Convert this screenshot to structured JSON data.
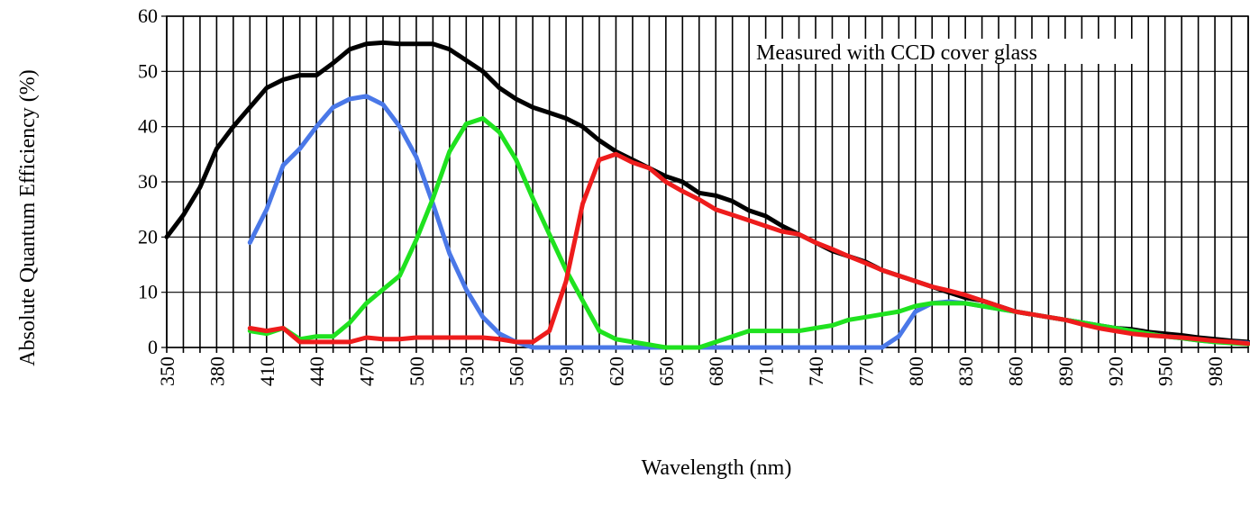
{
  "chart_data": {
    "type": "line",
    "xlabel": "Wavelength (nm)",
    "ylabel": "Absolute Quantum Efficiency (%)",
    "annotation": "Measured with CCD cover glass",
    "xlim": [
      350,
      1000
    ],
    "ylim": [
      0,
      60
    ],
    "x_step": 10,
    "x_tick_labels": [
      "350",
      "380",
      "410",
      "440",
      "470",
      "500",
      "530",
      "560",
      "590",
      "620",
      "650",
      "680",
      "710",
      "740",
      "770",
      "800",
      "830",
      "860",
      "890",
      "920",
      "950",
      "980"
    ],
    "y_tick_labels": [
      "0",
      "10",
      "20",
      "30",
      "40",
      "50",
      "60"
    ],
    "grid": true,
    "series": [
      {
        "color": "#000000",
        "x": [
          350,
          360,
          370,
          380,
          390,
          400,
          410,
          420,
          430,
          440,
          450,
          460,
          470,
          480,
          490,
          500,
          510,
          520,
          530,
          540,
          550,
          560,
          570,
          580,
          590,
          600,
          610,
          620,
          630,
          640,
          650,
          660,
          670,
          680,
          690,
          700,
          710,
          720,
          730,
          740,
          750,
          760,
          770,
          780,
          790,
          800,
          810,
          820,
          830,
          840,
          850,
          860,
          870,
          880,
          890,
          900,
          910,
          920,
          930,
          940,
          950,
          960,
          970,
          980,
          990,
          1000
        ],
        "y": [
          20,
          24,
          29,
          36,
          40,
          43.5,
          47,
          48.5,
          49.3,
          49.3,
          51.5,
          54,
          55,
          55.2,
          55,
          55,
          55,
          54,
          52,
          50,
          47,
          45,
          43.5,
          42.5,
          41.5,
          40,
          37.5,
          35.5,
          34,
          32.5,
          31,
          30,
          28,
          27.5,
          26.5,
          24.8,
          23.8,
          22,
          20.5,
          19,
          17.5,
          16.5,
          15.5,
          14,
          13,
          12,
          11,
          10,
          9,
          8.5,
          7.5,
          6.5,
          6,
          5.5,
          5,
          4.5,
          4,
          3.5,
          3.3,
          2.8,
          2.5,
          2.2,
          1.8,
          1.5,
          1.2,
          1
        ]
      },
      {
        "color": "#4a78e8",
        "x": [
          400,
          410,
          420,
          430,
          440,
          450,
          460,
          470,
          480,
          490,
          500,
          510,
          520,
          530,
          540,
          550,
          560,
          570,
          580,
          590,
          600,
          610,
          620,
          630,
          640,
          650,
          660,
          670,
          680,
          690,
          700,
          710,
          720,
          730,
          740,
          750,
          760,
          770,
          780,
          790,
          800,
          810,
          820,
          830,
          840,
          850,
          860,
          870,
          880,
          890,
          900,
          910,
          920,
          930,
          940,
          950,
          960,
          970,
          980,
          990,
          1000
        ],
        "y": [
          19,
          25,
          33,
          36,
          40,
          43.5,
          45,
          45.5,
          44,
          40,
          34.5,
          26,
          17,
          10.5,
          5.5,
          2.5,
          1,
          0,
          0,
          0,
          0,
          0,
          0,
          0,
          0,
          0,
          0,
          0,
          0,
          0,
          0,
          0,
          0,
          0,
          0,
          0,
          0,
          0,
          0,
          2,
          6.5,
          8,
          8.3,
          8,
          7.5,
          7,
          6.5,
          6,
          5.5,
          5,
          4.5,
          4,
          3.5,
          3,
          2.5,
          2,
          1.7,
          1.3,
          1,
          1,
          0.8
        ]
      },
      {
        "color": "#1fe21f",
        "x": [
          400,
          410,
          420,
          430,
          440,
          450,
          460,
          470,
          480,
          490,
          500,
          510,
          520,
          530,
          540,
          550,
          560,
          570,
          580,
          590,
          600,
          610,
          620,
          630,
          640,
          650,
          660,
          670,
          680,
          690,
          700,
          710,
          720,
          730,
          740,
          750,
          760,
          770,
          780,
          790,
          800,
          810,
          820,
          830,
          840,
          850,
          860,
          870,
          880,
          890,
          900,
          910,
          920,
          930,
          940,
          950,
          960,
          970,
          980,
          990,
          1000
        ],
        "y": [
          3,
          2.5,
          3.5,
          1.5,
          2,
          2,
          4.5,
          8,
          10.5,
          13,
          19.5,
          27,
          35.5,
          40.5,
          41.5,
          39,
          34,
          27,
          20.5,
          14,
          8.5,
          3,
          1.5,
          1,
          0.5,
          0,
          0,
          0,
          1,
          2,
          3,
          3,
          3,
          3,
          3.5,
          4,
          5,
          5.5,
          6,
          6.5,
          7.5,
          8,
          8,
          8,
          7.5,
          7,
          6.5,
          6,
          5.5,
          5,
          4.5,
          4,
          3.5,
          3,
          2.5,
          2,
          1.7,
          1.3,
          1,
          0.8,
          0.6
        ]
      },
      {
        "color": "#ee1c1c",
        "x": [
          400,
          410,
          420,
          430,
          440,
          450,
          460,
          470,
          480,
          490,
          500,
          510,
          520,
          530,
          540,
          550,
          560,
          570,
          580,
          590,
          600,
          610,
          620,
          630,
          640,
          650,
          660,
          670,
          680,
          690,
          700,
          710,
          720,
          730,
          740,
          750,
          760,
          770,
          780,
          790,
          800,
          810,
          820,
          830,
          840,
          850,
          860,
          870,
          880,
          890,
          900,
          910,
          920,
          930,
          940,
          950,
          960,
          970,
          980,
          990,
          1000
        ],
        "y": [
          3.5,
          3,
          3.5,
          1,
          1,
          1,
          1,
          1.8,
          1.5,
          1.5,
          1.8,
          1.8,
          1.8,
          1.8,
          1.8,
          1.5,
          1,
          1,
          3,
          12,
          26,
          34,
          35,
          33.5,
          32.5,
          30,
          28.3,
          26.8,
          25,
          24,
          23,
          22,
          21,
          20.5,
          19,
          17.8,
          16.5,
          15.3,
          14,
          13,
          12,
          11,
          10.3,
          9.5,
          8.5,
          7.5,
          6.5,
          6,
          5.5,
          5,
          4.2,
          3.5,
          3,
          2.5,
          2.2,
          2,
          1.8,
          1.5,
          1.2,
          1,
          0.7
        ]
      }
    ]
  }
}
